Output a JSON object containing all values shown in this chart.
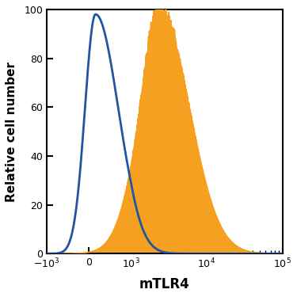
{
  "title": "",
  "xlabel": "mTLR4",
  "ylabel": "Relative cell number",
  "xlim": [
    -1000,
    100000
  ],
  "ylim": [
    0,
    100
  ],
  "yticks": [
    0,
    20,
    40,
    60,
    80,
    100
  ],
  "blue_color": "#2255a0",
  "orange_color": "#f5a020",
  "background_color": "#ffffff",
  "linthresh": 1000,
  "linscale": 0.5
}
